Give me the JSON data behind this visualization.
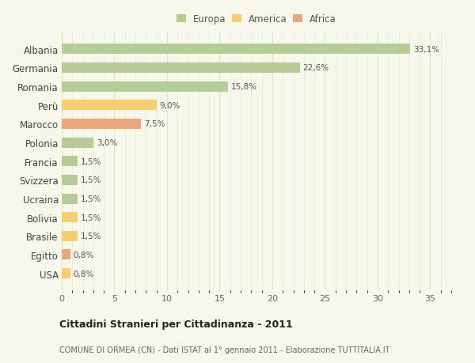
{
  "countries": [
    "Albania",
    "Germania",
    "Romania",
    "Perù",
    "Marocco",
    "Polonia",
    "Francia",
    "Svizzera",
    "Ucraina",
    "Bolivia",
    "Brasile",
    "Egitto",
    "USA"
  ],
  "values": [
    33.1,
    22.6,
    15.8,
    9.0,
    7.5,
    3.0,
    1.5,
    1.5,
    1.5,
    1.5,
    1.5,
    0.8,
    0.8
  ],
  "categories": [
    "Europa",
    "America",
    "Africa"
  ],
  "continent": [
    "Europa",
    "Europa",
    "Europa",
    "America",
    "Africa",
    "Europa",
    "Europa",
    "Europa",
    "Europa",
    "America",
    "America",
    "Africa",
    "America"
  ],
  "colors": {
    "Europa": "#b5cc96",
    "America": "#f5ce6e",
    "Africa": "#e8a87c"
  },
  "bg_color": "#f7f7eb",
  "grid_color": "#e0e0cc",
  "title": "Cittadini Stranieri per Cittadinanza - 2011",
  "subtitle": "COMUNE DI ORMEA (CN) - Dati ISTAT al 1° gennaio 2011 - Elaborazione TUTTITALIA.IT",
  "xlim": [
    0,
    37
  ],
  "xticks": [
    0,
    5,
    10,
    15,
    20,
    25,
    30,
    35
  ]
}
